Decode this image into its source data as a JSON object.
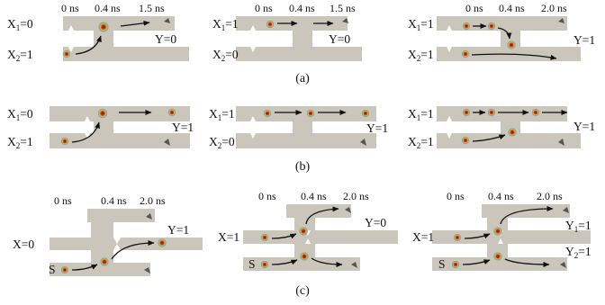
{
  "colors": {
    "track": "#cbc6bb",
    "skyrmion_core": "#c2361e",
    "skyrmion_ring": "#e9b53e",
    "skyrmion_halo": "#6aa7a0",
    "notch_marker": "#555555"
  },
  "rows": {
    "a": {
      "caption": "(a)",
      "panels": [
        {
          "times": [
            "0 ns",
            "0.4 ns",
            "1.5 ns"
          ],
          "in1": "X",
          "in1_sub": "1",
          "in1_val": "=0",
          "in2": "X",
          "in2_sub": "2",
          "in2_val": "=1",
          "out": "Y=0"
        },
        {
          "times": [
            "0 ns",
            "0.4 ns",
            "1.5 ns"
          ],
          "in1": "X",
          "in1_sub": "1",
          "in1_val": "=1",
          "in2": "X",
          "in2_sub": "2",
          "in2_val": "=0",
          "out": "Y=0"
        },
        {
          "times": [
            "0 ns",
            "0.4 ns",
            "2.0 ns"
          ],
          "in1": "X",
          "in1_sub": "1",
          "in1_val": "=1",
          "in2": "X",
          "in2_sub": "2",
          "in2_val": "=1",
          "out": "Y=1"
        }
      ]
    },
    "b": {
      "caption": "(b)",
      "panels": [
        {
          "in1": "X",
          "in1_sub": "1",
          "in1_val": "=0",
          "in2": "X",
          "in2_sub": "2",
          "in2_val": "=1",
          "out": "Y=1"
        },
        {
          "in1": "X",
          "in1_sub": "1",
          "in1_val": "=1",
          "in2": "X",
          "in2_sub": "2",
          "in2_val": "=0",
          "out": "Y=1"
        },
        {
          "in1": "X",
          "in1_sub": "1",
          "in1_val": "=1",
          "in2": "X",
          "in2_sub": "2",
          "in2_val": "=1",
          "out": "Y=1"
        }
      ]
    },
    "c": {
      "caption": "(c)",
      "panels": [
        {
          "times": [
            "0 ns",
            "0.4 ns",
            "2.0 ns"
          ],
          "input": "X=0",
          "source": "S",
          "out": "Y=1"
        },
        {
          "times": [
            "0 ns",
            "0.4 ns",
            "2.0 ns"
          ],
          "input": "X=1",
          "source": "S",
          "out": "Y=0"
        },
        {
          "times": [
            "0 ns",
            "0.4 ns",
            "2.0 ns"
          ],
          "input": "X=1",
          "source": "S",
          "out1": "Y",
          "out1_sub": "1",
          "out1_val": "=1",
          "out2": "Y",
          "out2_sub": "2",
          "out2_val": "=1"
        }
      ]
    }
  }
}
